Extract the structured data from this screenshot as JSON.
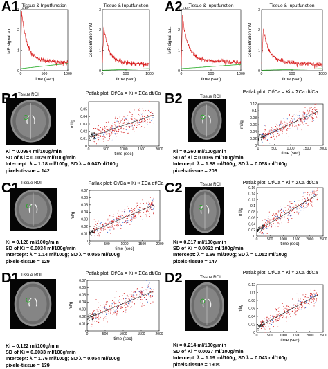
{
  "labels": {
    "A1": "A1",
    "A2": "A2",
    "B1": "B1",
    "B2": "B2",
    "C1": "C1",
    "C2": "C2",
    "D1": "D1",
    "D2": "D2"
  },
  "tissue_roi": "Tissue ROI",
  "patlak_title": "Patlak plot: Ct/Ca = Ki × ΣCa dt/Ca",
  "colors": {
    "signal": "#d81b1b",
    "fit_green": "#22aa22",
    "scatter_red": "#d42020",
    "scatter_blue": "#2255cc",
    "early_black": "#111111"
  },
  "panels": {
    "B1": {
      "ki": "Ki = 0.0984 ml/100g/min",
      "sd": "SD of Ki = 0.0029 ml/100g/min",
      "intercept": "Intercept: λ = 1.18 ml/100g; SD λ = 0.047ml/100g",
      "pixels": "pixels-tissue = 142"
    },
    "B2": {
      "ki": "Ki = 0.260 ml/100g/min",
      "sd": "SD of Ki = 0.0036 ml/100g/min",
      "intercept": "Intercept: λ = 1.88 ml/100g; SD λ = 0.058 ml/100g",
      "pixels": "pixels-tissue = 208"
    },
    "C1": {
      "ki": "Ki = 0.126 ml/100g/min",
      "sd": "SD of Ki = 0.0034 ml/100g/min",
      "intercept": "Intercept: λ = 1.14 ml/100g; SD λ = 0.055 ml/100g",
      "pixels": "pixels-tissue = 129"
    },
    "C2": {
      "ki": "Ki = 0.317 ml/100g/min",
      "sd": "SD of Ki = 0.0032 ml/100g/min",
      "intercept": "Intercept: λ = 1.66 ml/100g; SD λ = 0.052 ml/100g",
      "pixels": "pixels-tissue = 147"
    },
    "D1": {
      "ki": "Ki = 0.122 ml/100g/min",
      "sd": "SD of Ki = 0.0033 ml/100g/min",
      "intercept": "Intercept: λ = 1.76 ml/100g; SD λ = 0.054 ml/100g",
      "pixels": "pixels-tissue = 139"
    },
    "D2": {
      "ki": "Ki = 0.214 ml/100g/min",
      "sd": "SD of Ki = 0.0027 ml/100g/min",
      "intercept": "Intercept: λ = 1.19 ml/100g; SD λ = 0.043 ml/100g",
      "pixels": "pixels-tissue = 190s"
    }
  },
  "chart_data": [
    {
      "id": "A1-left",
      "type": "line",
      "title": "Tissue & Inputfunction",
      "xlabel": "time (sec)",
      "ylabel": "MR signal a.u.",
      "exponent": "x 10⁴",
      "xlim": [
        0,
        1000
      ],
      "xticks": [
        0,
        500,
        1000
      ],
      "ylim": [
        0,
        3
      ],
      "yticks": [
        0,
        1,
        2,
        3
      ],
      "series": [
        {
          "color": "red",
          "decay": {
            "peak": 2.9,
            "peak_t": 20,
            "base": 0.55,
            "tau": 110,
            "end": 0.4
          }
        },
        {
          "color": "green",
          "flat": {
            "start": 0.1,
            "end": 0.35
          }
        }
      ]
    },
    {
      "id": "A1-right",
      "type": "line",
      "title": "Tissue & Inputfunction",
      "xlabel": "time (sec)",
      "ylabel": "Concentration mM",
      "xlim": [
        0,
        1000
      ],
      "xticks": [
        0,
        500,
        1000
      ],
      "ylim": [
        0,
        3
      ],
      "yticks": [
        0,
        1,
        2,
        3
      ],
      "series": [
        {
          "color": "red",
          "decay": {
            "peak": 2.2,
            "peak_t": 30,
            "base": 0.45,
            "tau": 100,
            "end": 0.3
          }
        },
        {
          "color": "green",
          "flat": {
            "start": 0.02,
            "end": 0.1
          }
        }
      ]
    },
    {
      "id": "A2-left",
      "type": "line",
      "title": "Tissue & Inputfunction",
      "xlabel": "time (sec)",
      "ylabel": "MR signal a.u.",
      "exponent": "x 10⁴",
      "xlim": [
        0,
        1000
      ],
      "xticks": [
        0,
        500,
        1000
      ],
      "ylim": [
        0,
        3
      ],
      "yticks": [
        0,
        1,
        2,
        3
      ],
      "series": [
        {
          "color": "red",
          "decay": {
            "peak": 2.7,
            "peak_t": 20,
            "base": 0.55,
            "tau": 90,
            "end": 0.4
          }
        },
        {
          "color": "green",
          "flat": {
            "start": 0.1,
            "end": 0.3
          }
        }
      ]
    },
    {
      "id": "A2-right",
      "type": "line",
      "title": "Tissue & Inputfunction",
      "xlabel": "time (sec)",
      "ylabel": "Concentration mM",
      "xlim": [
        0,
        1000
      ],
      "xticks": [
        0,
        500,
        1000
      ],
      "ylim": [
        0,
        3
      ],
      "yticks": [
        0,
        1,
        2,
        3
      ],
      "series": [
        {
          "color": "red",
          "decay": {
            "peak": 2.1,
            "peak_t": 30,
            "base": 0.45,
            "tau": 90,
            "end": 0.3
          }
        },
        {
          "color": "green",
          "flat": {
            "start": 0.02,
            "end": 0.1
          }
        }
      ]
    },
    {
      "id": "B1",
      "type": "scatter",
      "xlabel": "time (sec)",
      "ylabel": "ml/g",
      "xlim": [
        0,
        2000
      ],
      "xticks": [
        0,
        500,
        1000,
        1500,
        2000
      ],
      "ylim": [
        0,
        0.06
      ],
      "yticks": [
        0,
        0.01,
        0.02,
        0.03,
        0.04,
        0.05
      ],
      "fit": {
        "slope": 1.64e-05,
        "intercept": 0.0118
      },
      "noise": 0.0065
    },
    {
      "id": "B2",
      "type": "scatter",
      "xlabel": "time (sec)",
      "ylabel": "ml/g",
      "xlim": [
        0,
        2000
      ],
      "xticks": [
        0,
        500,
        1000,
        1500,
        2000
      ],
      "ylim": [
        0,
        0.12
      ],
      "yticks": [
        0,
        0.02,
        0.04,
        0.06,
        0.08,
        0.1,
        0.12
      ],
      "fit": {
        "slope": 4.33e-05,
        "intercept": 0.0188
      },
      "noise": 0.012
    },
    {
      "id": "C1",
      "type": "scatter",
      "xlabel": "time (sec)",
      "ylabel": "ml/g",
      "xlim": [
        0,
        2000
      ],
      "xticks": [
        0,
        500,
        1000,
        1500,
        2000
      ],
      "ylim": [
        0,
        0.07
      ],
      "yticks": [
        0,
        0.01,
        0.02,
        0.03,
        0.04,
        0.05,
        0.06,
        0.07
      ],
      "fit": {
        "slope": 2.1e-05,
        "intercept": 0.0114
      },
      "noise": 0.006
    },
    {
      "id": "C2",
      "type": "scatter",
      "xlabel": "time (sec)",
      "ylabel": "ml/g",
      "xlim": [
        0,
        2500
      ],
      "xticks": [
        0,
        500,
        1000,
        1500,
        2000,
        2500
      ],
      "ylim": [
        0,
        0.16
      ],
      "yticks": [
        0,
        0.02,
        0.04,
        0.06,
        0.08,
        0.1,
        0.12,
        0.14,
        0.16
      ],
      "fit": {
        "slope": 5.28e-05,
        "intercept": 0.0166
      },
      "noise": 0.013
    },
    {
      "id": "D1",
      "type": "scatter",
      "xlabel": "time (sec)",
      "ylabel": "ml/g",
      "xlim": [
        0,
        2000
      ],
      "xticks": [
        0,
        500,
        1000,
        1500,
        2000
      ],
      "ylim": [
        0,
        0.07
      ],
      "yticks": [
        0,
        0.01,
        0.02,
        0.03,
        0.04,
        0.05,
        0.06,
        0.07
      ],
      "fit": {
        "slope": 2.03e-05,
        "intercept": 0.0176
      },
      "noise": 0.007
    },
    {
      "id": "D2",
      "type": "scatter",
      "xlabel": "time (sec)",
      "ylabel": "ml/g",
      "xlim": [
        0,
        2500
      ],
      "xticks": [
        0,
        500,
        1000,
        1500,
        2000,
        2500
      ],
      "ylim": [
        0,
        0.12
      ],
      "yticks": [
        0,
        0.02,
        0.04,
        0.06,
        0.08,
        0.1,
        0.12
      ],
      "fit": {
        "slope": 3.57e-05,
        "intercept": 0.0119
      },
      "noise": 0.01
    }
  ]
}
